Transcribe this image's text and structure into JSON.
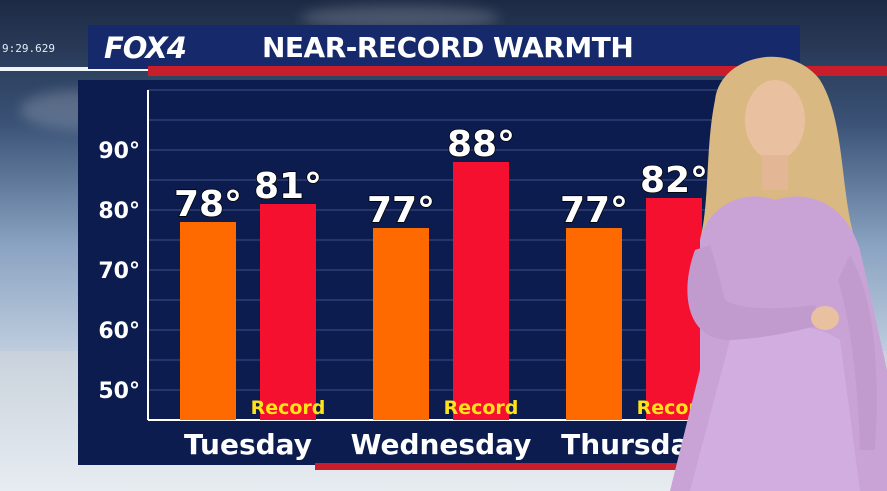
{
  "timestamp": "9:29.629",
  "header": {
    "logo": "FOX4",
    "title": "NEAR-RECORD WARMTH"
  },
  "colors": {
    "forecast_bar": "#ff6a00",
    "record_bar": "#f5102f",
    "record_label": "#ffe21a",
    "panel": "#0c1c4e",
    "brand_blue": "#15296b",
    "brand_red": "#c81d2b"
  },
  "chart_data": {
    "type": "bar",
    "title": "NEAR-RECORD WARMTH",
    "categories": [
      "Tuesday",
      "Wednesday",
      "Thursday"
    ],
    "series": [
      {
        "values": [
          78,
          77,
          77
        ],
        "value_labels": [
          "78°",
          "77°",
          "77°"
        ]
      },
      {
        "name": "Record",
        "values": [
          81,
          88,
          82
        ],
        "value_labels": [
          "81°",
          "88°",
          "82°"
        ]
      }
    ],
    "yticks": [
      "50°",
      "60°",
      "70°",
      "80°",
      "90°"
    ],
    "ytick_values": [
      50,
      60,
      70,
      80,
      90
    ],
    "ylim": [
      45,
      100
    ],
    "grid": true,
    "xlabel": "",
    "ylabel": ""
  }
}
